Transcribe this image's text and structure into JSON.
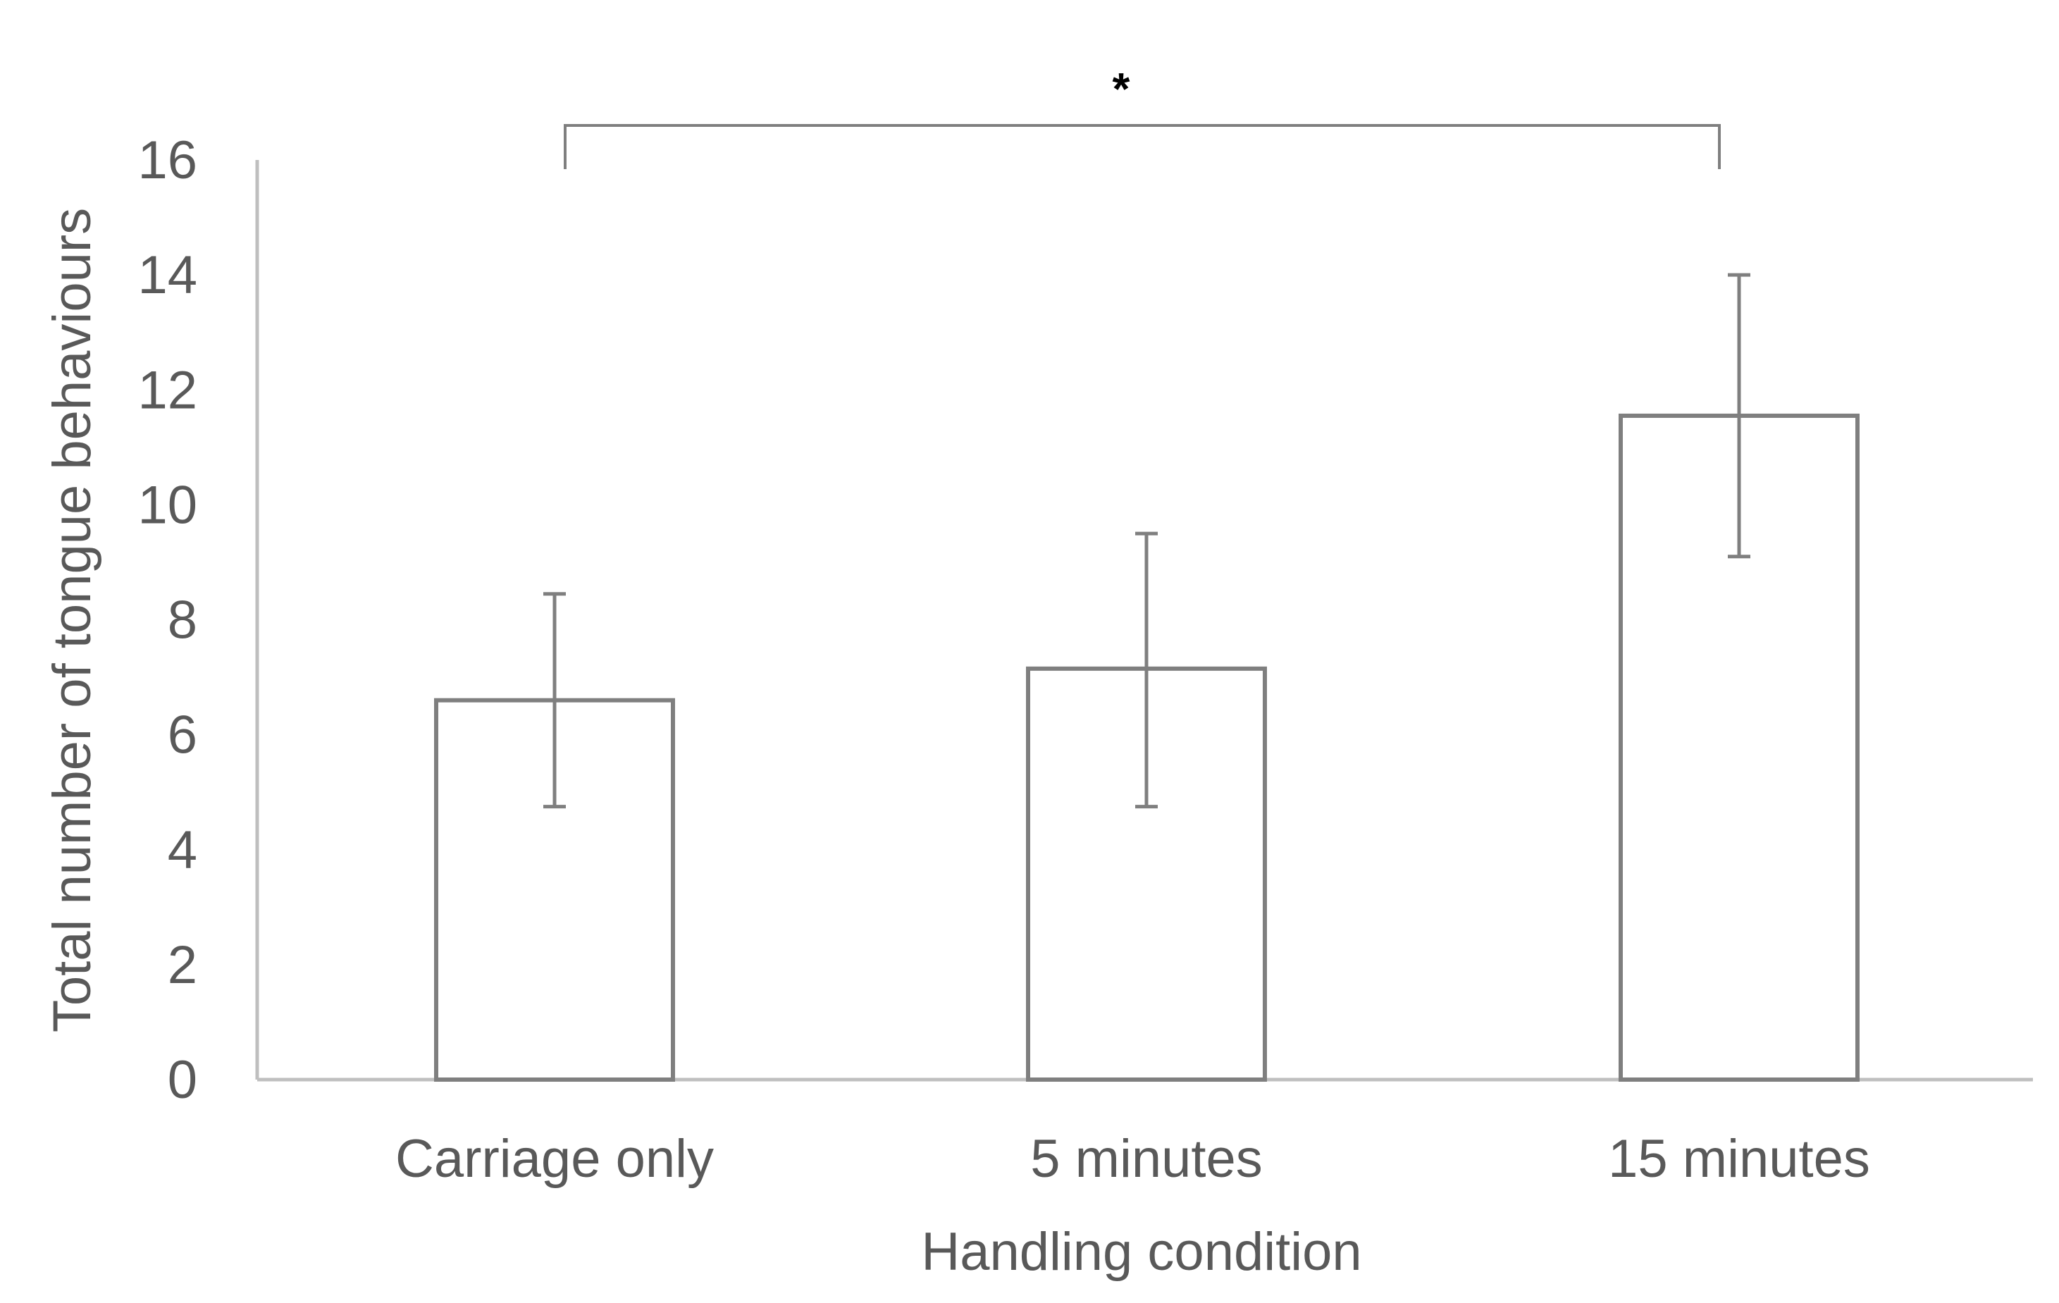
{
  "chart_data": {
    "type": "bar",
    "title": "",
    "xlabel": "Handling condition",
    "ylabel": "Total number of tongue behaviours",
    "categories": [
      "Carriage only",
      "5 minutes",
      "15 minutes"
    ],
    "series": [
      {
        "values": [
          6.6,
          7.15,
          11.55
        ],
        "error_low": [
          4.75,
          4.75,
          9.1
        ],
        "error_high": [
          8.45,
          9.5,
          14.0
        ]
      }
    ],
    "ylim": [
      0,
      16
    ],
    "yticks": [
      "0",
      "2",
      "4",
      "6",
      "8",
      "10",
      "12",
      "14",
      "16"
    ],
    "grid": false,
    "legend": "none",
    "significance": {
      "from": "Carriage only",
      "to": "15 minutes",
      "label": "*"
    },
    "colors": {
      "bar_fill": "#ffffff",
      "bar_stroke": "#7f7f7f",
      "axis": "#bfbfbf",
      "text": "#595959",
      "bracket": "#7f7f7f",
      "error_bar": "#7f7f7f"
    }
  }
}
